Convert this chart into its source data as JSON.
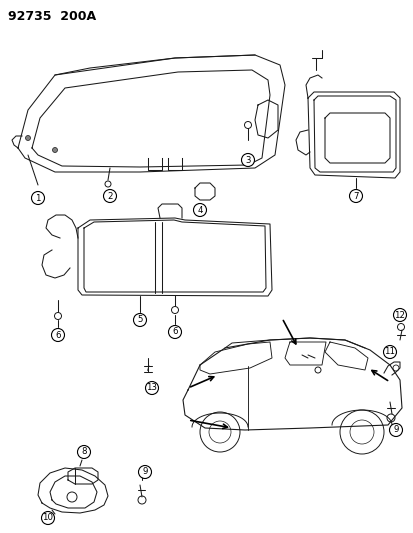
{
  "title": "92735  200A",
  "bg_color": "#ffffff",
  "line_color": "#1a1a1a",
  "fig_width": 4.14,
  "fig_height": 5.33,
  "dpi": 100
}
